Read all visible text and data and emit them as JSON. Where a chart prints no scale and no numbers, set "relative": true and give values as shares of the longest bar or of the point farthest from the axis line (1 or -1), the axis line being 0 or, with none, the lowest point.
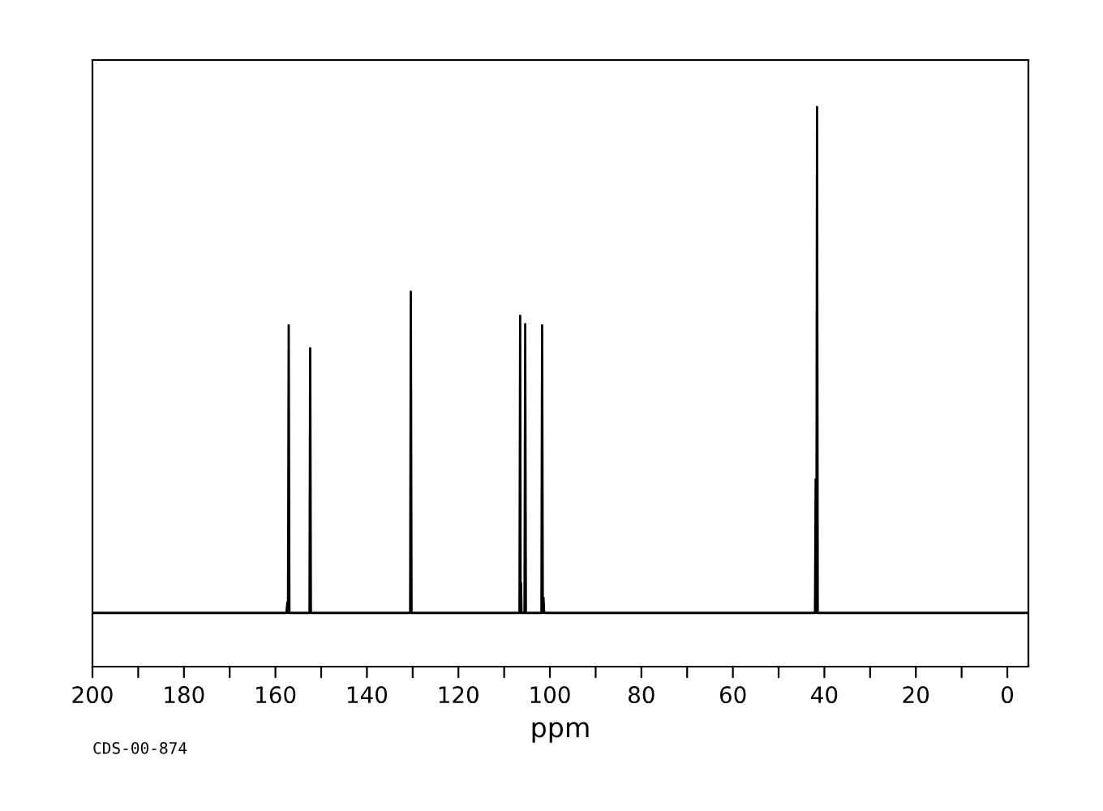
{
  "chart_data": {
    "type": "line",
    "relative": true,
    "xlabel": "ppm",
    "annotations": [
      "CDS-00-874"
    ],
    "xlim": [
      200,
      -4.6
    ],
    "xticks": [
      200,
      {
        "value": 190,
        "label": null
      },
      180,
      {
        "value": 170,
        "label": null
      },
      160,
      {
        "value": 150,
        "label": null
      },
      140,
      {
        "value": 130,
        "label": null
      },
      120,
      {
        "value": 110,
        "label": null
      },
      100,
      {
        "value": 90,
        "label": null
      },
      80,
      {
        "value": 70,
        "label": null
      },
      60,
      {
        "value": 50,
        "label": null
      },
      40,
      {
        "value": 30,
        "label": null
      },
      20,
      {
        "value": 10,
        "label": null
      },
      0
    ],
    "grid": false,
    "legend": false,
    "marker": "none",
    "line_style": "solid",
    "series": [
      {
        "color": "#000000",
        "x": [
          200,
          157.6,
          157.4,
          157.25,
          157.1,
          156.95,
          152.55,
          152.4,
          152.25,
          130.55,
          130.4,
          130.25,
          106.65,
          106.5,
          106.4,
          106.3,
          106.2,
          105.55,
          105.4,
          105.25,
          101.85,
          101.7,
          101.55,
          101.4,
          101.25,
          42.05,
          41.9,
          41.75,
          41.6,
          41.45,
          -4.6
        ],
        "values": [
          0.096,
          0.096,
          0.115,
          0.096,
          0.61,
          0.096,
          0.096,
          0.569,
          0.096,
          0.096,
          0.67,
          0.096,
          0.096,
          0.627,
          0.096,
          0.149,
          0.096,
          0.096,
          0.612,
          0.096,
          0.096,
          0.61,
          0.096,
          0.123,
          0.096,
          0.096,
          0.335,
          0.096,
          1.0,
          0.096,
          0.096
        ]
      }
    ]
  }
}
